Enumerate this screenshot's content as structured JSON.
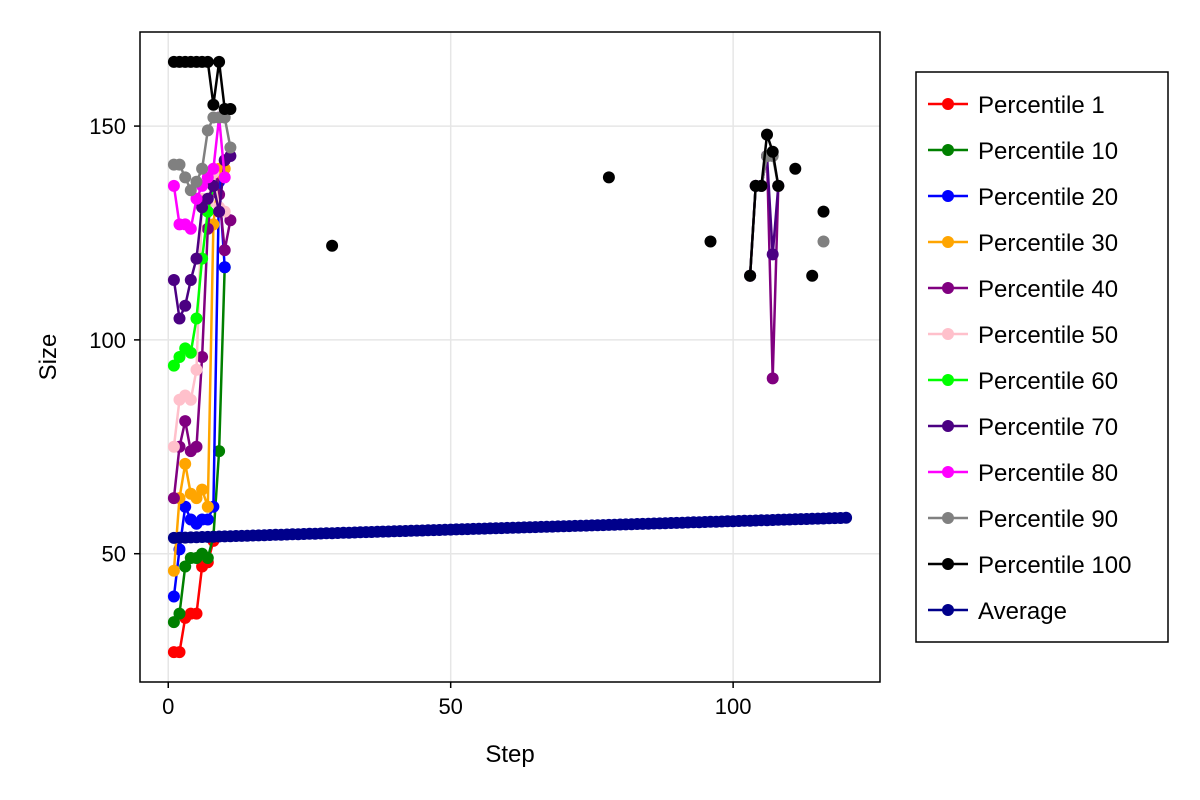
{
  "chart_data": {
    "type": "line",
    "title": "",
    "xlabel": "Step",
    "ylabel": "Size",
    "xlim": [
      -5,
      126
    ],
    "ylim": [
      20,
      172
    ],
    "xticks": [
      0,
      50,
      100
    ],
    "yticks": [
      50,
      100,
      150
    ],
    "grid": true,
    "legend_position": "right",
    "series": [
      {
        "name": "Percentile 1",
        "color": "#ff0000",
        "x": [
          1,
          2,
          3,
          4,
          5,
          6,
          7,
          8
        ],
        "y": [
          27,
          27,
          35,
          36,
          36,
          47,
          48,
          53
        ]
      },
      {
        "name": "Percentile 10",
        "color": "#008000",
        "x": [
          1,
          2,
          3,
          4,
          5,
          6,
          7,
          8,
          9,
          10
        ],
        "y": [
          34,
          36,
          47,
          49,
          49,
          50,
          49,
          54,
          74,
          117
        ]
      },
      {
        "name": "Percentile 20",
        "color": "#0000ff",
        "x": [
          1,
          2,
          3,
          4,
          5,
          6,
          7,
          8,
          9,
          10
        ],
        "y": [
          40,
          51,
          61,
          58,
          57,
          58,
          58,
          61,
          137,
          117
        ]
      },
      {
        "name": "Percentile 30",
        "color": "#ffa500",
        "x": [
          1,
          2,
          3,
          4,
          5,
          6,
          7,
          8,
          9,
          10
        ],
        "y": [
          46,
          63,
          71,
          64,
          63,
          65,
          61,
          127,
          140,
          140
        ]
      },
      {
        "name": "Percentile 40",
        "color": "#800080",
        "x": [
          1,
          2,
          3,
          4,
          5,
          6,
          7,
          8,
          9,
          10,
          11,
          103,
          104,
          105,
          106,
          107,
          108
        ],
        "y": [
          63,
          75,
          81,
          74,
          75,
          96,
          126,
          137,
          134,
          121,
          128,
          115,
          136,
          136,
          143,
          91,
          136
        ]
      },
      {
        "name": "Percentile 50",
        "color": "#ffc0cb",
        "x": [
          1,
          2,
          3,
          4,
          5,
          6,
          7,
          8,
          9,
          10
        ],
        "y": [
          75,
          86,
          87,
          86,
          93,
          133,
          132,
          139,
          131,
          130
        ]
      },
      {
        "name": "Percentile 60",
        "color": "#00ff00",
        "x": [
          1,
          2,
          3,
          4,
          5,
          6,
          7,
          8
        ],
        "y": [
          94,
          96,
          98,
          97,
          105,
          119,
          130,
          136
        ]
      },
      {
        "name": "Percentile 70",
        "color": "#4b0082",
        "x": [
          1,
          2,
          3,
          4,
          5,
          6,
          7,
          8,
          9,
          10,
          11,
          103,
          104,
          105,
          106,
          107,
          108
        ],
        "y": [
          114,
          105,
          108,
          114,
          119,
          131,
          133,
          136,
          130,
          142,
          143,
          115,
          136,
          136,
          143,
          120,
          136
        ]
      },
      {
        "name": "Percentile 80",
        "color": "#ff00ff",
        "x": [
          1,
          2,
          3,
          4,
          5,
          6,
          7,
          8,
          9,
          10
        ],
        "y": [
          136,
          127,
          127,
          126,
          133,
          136,
          138,
          140,
          152,
          138
        ]
      },
      {
        "name": "Percentile 90",
        "color": "#808080",
        "x": [
          1,
          2,
          3,
          4,
          5,
          6,
          7,
          8,
          9,
          10,
          11,
          103,
          104,
          105,
          106,
          107,
          108,
          116
        ],
        "y": [
          141,
          141,
          138,
          135,
          137,
          140,
          149,
          152,
          152,
          152,
          145,
          115,
          136,
          136,
          143,
          143,
          136,
          123
        ]
      },
      {
        "name": "Percentile 100",
        "color": "#000000",
        "x": [
          1,
          2,
          3,
          4,
          5,
          6,
          7,
          8,
          9,
          10,
          11,
          29,
          78,
          96,
          103,
          104,
          105,
          106,
          107,
          108,
          111,
          114,
          116
        ],
        "y": [
          165,
          165,
          165,
          165,
          165,
          165,
          165,
          155,
          165,
          154,
          154,
          122,
          138,
          123,
          115,
          136,
          136,
          148,
          144,
          136,
          140,
          115,
          130
        ]
      },
      {
        "name": "Average",
        "color": "#00008b",
        "x_range": [
          1,
          120
        ],
        "y_range": [
          53.7,
          58.4
        ]
      }
    ]
  }
}
